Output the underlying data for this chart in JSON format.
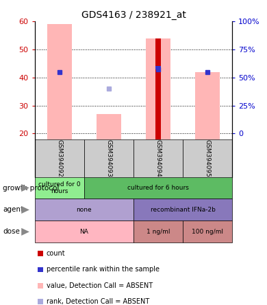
{
  "title": "GDS4163 / 238921_at",
  "samples": [
    "GSM394092",
    "GSM394093",
    "GSM394094",
    "GSM394095"
  ],
  "ylim_left": [
    18,
    60
  ],
  "yticks_left": [
    20,
    30,
    40,
    50,
    60
  ],
  "yticks_right": [
    0,
    25,
    50,
    75,
    100
  ],
  "bars_pink_value": [
    59,
    27,
    54,
    42
  ],
  "bars_pink_absent": [
    true,
    true,
    true,
    true
  ],
  "blue_square_value": [
    42,
    36,
    43,
    42
  ],
  "blue_square_absent": [
    false,
    true,
    false,
    false
  ],
  "red_bar_value": [
    54
  ],
  "red_bar_sample_idx": [
    2
  ],
  "blue_bar_value": [
    43
  ],
  "blue_bar_sample_idx": [
    2
  ],
  "metadata_rows": [
    {
      "label": "growth protocol",
      "cells": [
        {
          "text": "cultured for 0\nhours",
          "span": 1,
          "color": "#90EE90"
        },
        {
          "text": "cultured for 6 hours",
          "span": 3,
          "color": "#5DBB63"
        }
      ]
    },
    {
      "label": "agent",
      "cells": [
        {
          "text": "none",
          "span": 2,
          "color": "#B0A0D0"
        },
        {
          "text": "recombinant IFNa-2b",
          "span": 2,
          "color": "#8878BB"
        }
      ]
    },
    {
      "label": "dose",
      "cells": [
        {
          "text": "NA",
          "span": 2,
          "color": "#FFB6C1"
        },
        {
          "text": "1 ng/ml",
          "span": 1,
          "color": "#CC8888"
        },
        {
          "text": "100 ng/ml",
          "span": 1,
          "color": "#CC8888"
        }
      ]
    }
  ],
  "legend_items": [
    {
      "color": "#CC0000",
      "label": "count"
    },
    {
      "color": "#3333CC",
      "label": "percentile rank within the sample"
    },
    {
      "color": "#FFB6B6",
      "label": "value, Detection Call = ABSENT"
    },
    {
      "color": "#AAAADD",
      "label": "rank, Detection Call = ABSENT"
    }
  ],
  "left_axis_color": "#CC0000",
  "right_axis_color": "#0000CC",
  "bar_width": 0.5,
  "pink_color": "#FFB6B6",
  "light_blue_color": "#AAAADD",
  "red_color": "#CC0000",
  "blue_color": "#3333CC",
  "bg_color": "#FFFFFF",
  "sample_area_color": "#CCCCCC"
}
